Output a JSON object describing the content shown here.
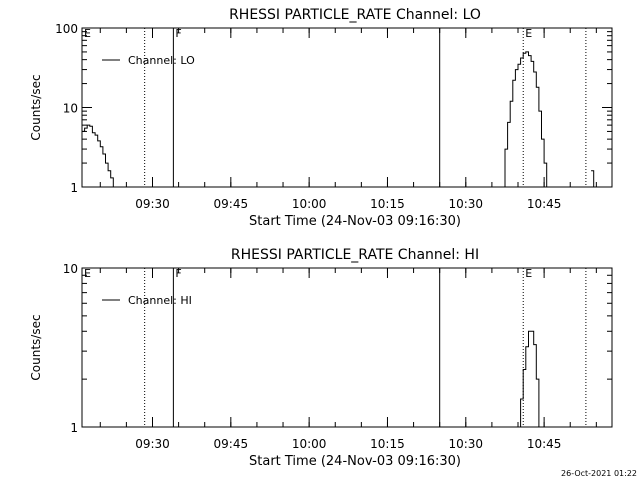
{
  "footer": {
    "timestamp": "26-Oct-2021 01:22"
  },
  "chart_data": [
    {
      "type": "line",
      "title": "RHESSI PARTICLE_RATE Channel: LO",
      "xlabel": "Start Time (24-Nov-03 09:16:30)",
      "ylabel": "Counts/sec",
      "y_scale": "log",
      "xlim": [
        "09:16:30",
        "10:58:00"
      ],
      "ylim": [
        1,
        100
      ],
      "x_ticks": [
        "09:30",
        "09:45",
        "10:00",
        "10:15",
        "10:30",
        "10:45"
      ],
      "y_ticks": [
        "1",
        "10",
        "100"
      ],
      "legend": {
        "position": "top-left",
        "entries": [
          "Channel: LO"
        ]
      },
      "series": [
        {
          "name": "Channel: LO",
          "x": [
            "09:16:30",
            "09:17:00",
            "09:17:30",
            "09:18:00",
            "09:18:30",
            "09:19:00",
            "09:19:30",
            "09:20:00",
            "09:20:30",
            "09:21:00",
            "09:21:30",
            "09:22:00",
            "09:22:30",
            "10:37:00",
            "10:37:30",
            "10:38:00",
            "10:38:30",
            "10:39:00",
            "10:39:30",
            "10:40:00",
            "10:40:30",
            "10:41:00",
            "10:41:30",
            "10:42:00",
            "10:42:30",
            "10:43:00",
            "10:43:30",
            "10:44:00",
            "10:44:30",
            "10:45:00",
            "10:45:30",
            "10:54:00",
            "10:54:30"
          ],
          "y": [
            5.0,
            5.5,
            6.0,
            5.8,
            4.8,
            4.5,
            3.8,
            3.2,
            2.6,
            2.0,
            1.6,
            1.3,
            1.0,
            1.0,
            3.0,
            6.5,
            12.0,
            22.0,
            30.0,
            35.0,
            42.0,
            48.0,
            50.0,
            45.0,
            38.0,
            28.0,
            18.0,
            9.0,
            4.0,
            2.0,
            1.0,
            1.6,
            1.0
          ]
        }
      ],
      "annotations": [
        {
          "label": "E",
          "time": "09:16:30",
          "style": "solid"
        },
        {
          "label": "",
          "time": "09:28:30",
          "style": "dotted"
        },
        {
          "label": "F",
          "time": "09:34:00",
          "style": "solid"
        },
        {
          "label": "",
          "time": "10:25:00",
          "style": "solid"
        },
        {
          "label": "E",
          "time": "10:41:00",
          "style": "dotted"
        },
        {
          "label": "",
          "time": "10:53:00",
          "style": "dotted"
        }
      ]
    },
    {
      "type": "line",
      "title": "RHESSI PARTICLE_RATE Channel: HI",
      "xlabel": "Start Time (24-Nov-03 09:16:30)",
      "ylabel": "Counts/sec",
      "y_scale": "log",
      "xlim": [
        "09:16:30",
        "10:58:00"
      ],
      "ylim": [
        1,
        10
      ],
      "x_ticks": [
        "09:30",
        "09:45",
        "10:00",
        "10:15",
        "10:30",
        "10:45"
      ],
      "y_ticks": [
        "1",
        "10"
      ],
      "legend": {
        "position": "top-left",
        "entries": [
          "Channel: HI"
        ]
      },
      "series": [
        {
          "name": "Channel: HI",
          "x": [
            "10:40:00",
            "10:40:30",
            "10:41:00",
            "10:41:30",
            "10:42:00",
            "10:42:30",
            "10:43:00",
            "10:43:30",
            "10:44:00"
          ],
          "y": [
            1.0,
            1.5,
            2.3,
            3.2,
            4.0,
            4.0,
            3.3,
            2.0,
            1.0
          ]
        }
      ],
      "annotations": [
        {
          "label": "E",
          "time": "09:16:30",
          "style": "solid"
        },
        {
          "label": "",
          "time": "09:28:30",
          "style": "dotted"
        },
        {
          "label": "F",
          "time": "09:34:00",
          "style": "solid"
        },
        {
          "label": "",
          "time": "10:25:00",
          "style": "solid"
        },
        {
          "label": "E",
          "time": "10:41:00",
          "style": "dotted"
        },
        {
          "label": "",
          "time": "10:53:00",
          "style": "dotted"
        }
      ]
    }
  ]
}
